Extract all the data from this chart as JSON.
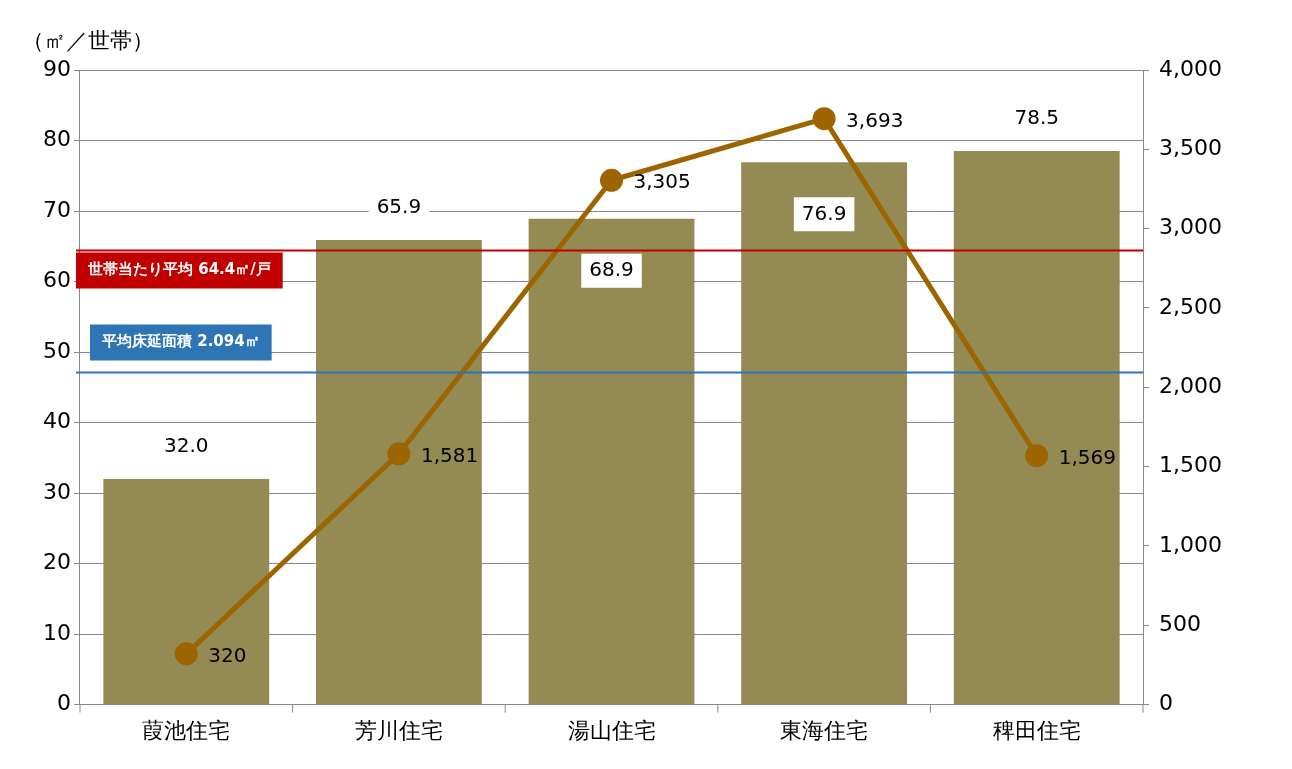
{
  "chart_data": {
    "type": "bar",
    "ylabel": "（㎡／世帯）",
    "categories": [
      "葭池住宅",
      "芳川住宅",
      "湯山住宅",
      "東海住宅",
      "稗田住宅"
    ],
    "series": [
      {
        "color": "#948a54",
        "values": [
          32.0,
          65.9,
          68.9,
          76.9,
          78.5
        ],
        "value_labels": [
          "32.0",
          "65.9",
          "68.9",
          "76.9",
          "78.5"
        ]
      },
      {
        "type": "line",
        "axis": "y2",
        "color": "#9c6500",
        "marker": "circle",
        "values": [
          320,
          1581,
          3305,
          3693,
          1569
        ],
        "value_labels": [
          "320",
          "1,581",
          "3,305",
          "3,693",
          "1,569"
        ]
      }
    ],
    "ylim": [
      0,
      90
    ],
    "yticks": [
      0,
      10,
      20,
      30,
      40,
      50,
      60,
      70,
      80,
      90
    ],
    "y2lim": [
      0,
      4000
    ],
    "y2ticks": [
      {
        "value": 0,
        "label": "0"
      },
      {
        "value": 500,
        "label": "500"
      },
      {
        "value": 1000,
        "label": "1,000"
      },
      {
        "value": 1500,
        "label": "1,500"
      },
      {
        "value": 2000,
        "label": "2,000"
      },
      {
        "value": 2500,
        "label": "2,500"
      },
      {
        "value": 3000,
        "label": "3,000"
      },
      {
        "value": 3500,
        "label": "3,500"
      },
      {
        "value": 4000,
        "label": "4,000"
      }
    ],
    "ref_lines": [
      {
        "axis": "y",
        "value": 64.4,
        "label": "世帯当たり平均 64.4㎡/戸",
        "color": "#c00000"
      },
      {
        "axis": "y2",
        "value": 2094,
        "label": "平均床延面積 2.094㎡",
        "color": "#2e75b6"
      }
    ],
    "grid": "y",
    "legend": false
  }
}
